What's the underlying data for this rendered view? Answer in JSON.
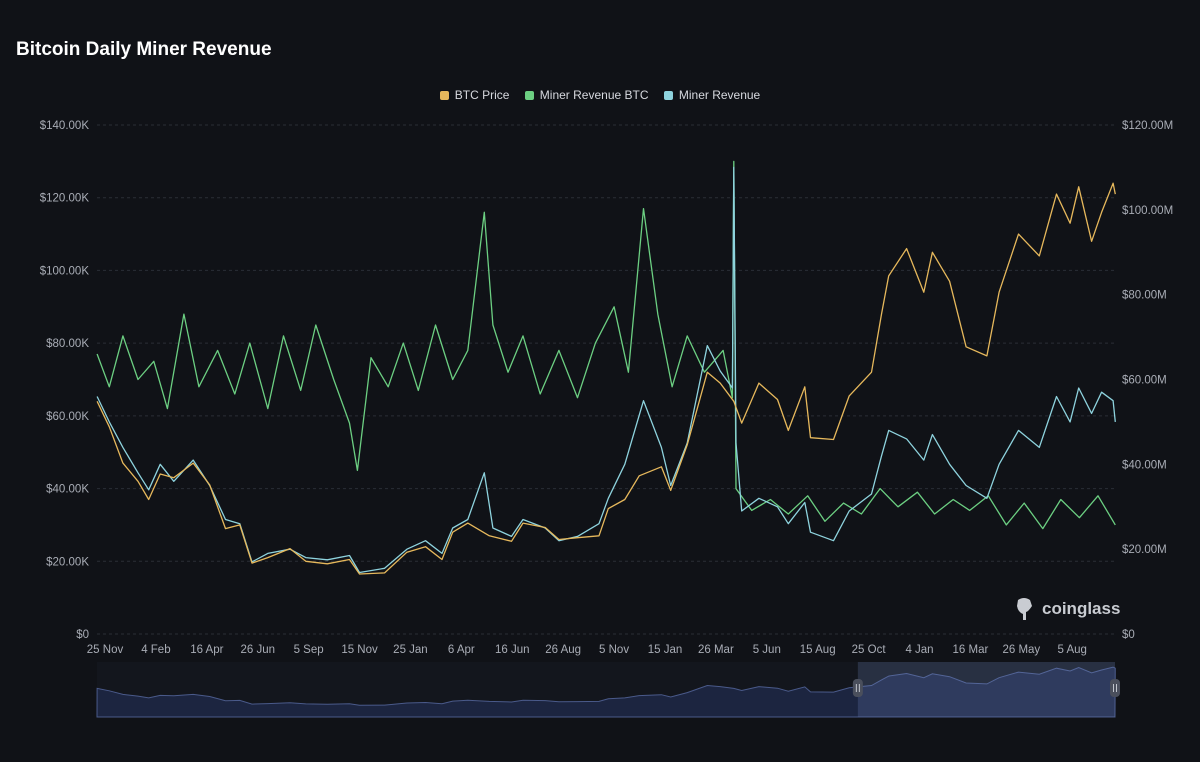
{
  "title": "Bitcoin Daily Miner Revenue",
  "logo": "coinglass",
  "colors": {
    "btc_price": "#e6b85c",
    "miner_revenue_btc": "#6ccf82",
    "miner_revenue": "#8ed3de",
    "background": "#101217",
    "grid": "#2a2e36"
  },
  "chart_data": {
    "type": "line",
    "title": "Bitcoin Daily Miner Revenue",
    "legend_position": "top",
    "grid": true,
    "x_ticks": [
      "25 Nov",
      "4 Feb",
      "16 Apr",
      "26 Jun",
      "5 Sep",
      "15 Nov",
      "25 Jan",
      "6 Apr",
      "16 Jun",
      "26 Aug",
      "5 Nov",
      "15 Jan",
      "26 Mar",
      "5 Jun",
      "15 Aug",
      "25 Oct",
      "4 Jan",
      "16 Mar",
      "26 May",
      "5 Aug"
    ],
    "x_tick_dates": [
      "2021-11-25",
      "2022-02-04",
      "2022-04-16",
      "2022-06-26",
      "2022-09-05",
      "2022-11-15",
      "2023-01-25",
      "2023-04-06",
      "2023-06-16",
      "2023-08-26",
      "2023-11-05",
      "2024-01-15",
      "2024-03-26",
      "2024-06-05",
      "2024-08-15",
      "2024-10-25",
      "2025-01-04",
      "2025-03-16",
      "2025-05-26",
      "2025-08-05"
    ],
    "xlim": [
      "2021-11-14",
      "2025-10-04"
    ],
    "y_left": {
      "ticks": [
        "$0",
        "$20.00K",
        "$40.00K",
        "$60.00K",
        "$80.00K",
        "$100.00K",
        "$120.00K",
        "$140.00K"
      ],
      "range": [
        0,
        140000
      ]
    },
    "y_right": {
      "ticks": [
        "$0",
        "$20.00M",
        "$40.00M",
        "$60.00M",
        "$80.00M",
        "$100.00M",
        "$120.00M"
      ],
      "range": [
        0,
        120000000
      ]
    },
    "series": [
      {
        "name": "BTC Price",
        "axis": "left",
        "points": [
          [
            "2021-11-14",
            64000
          ],
          [
            "2021-12-01",
            57000
          ],
          [
            "2021-12-20",
            47000
          ],
          [
            "2022-01-10",
            42000
          ],
          [
            "2022-01-25",
            37000
          ],
          [
            "2022-02-10",
            44000
          ],
          [
            "2022-03-01",
            43000
          ],
          [
            "2022-03-28",
            47000
          ],
          [
            "2022-04-20",
            41000
          ],
          [
            "2022-05-12",
            29000
          ],
          [
            "2022-06-01",
            30000
          ],
          [
            "2022-06-18",
            19500
          ],
          [
            "2022-07-10",
            21000
          ],
          [
            "2022-08-10",
            23500
          ],
          [
            "2022-09-01",
            20000
          ],
          [
            "2022-10-01",
            19300
          ],
          [
            "2022-11-01",
            20500
          ],
          [
            "2022-11-15",
            16500
          ],
          [
            "2022-12-20",
            16800
          ],
          [
            "2023-01-20",
            22500
          ],
          [
            "2023-02-15",
            24000
          ],
          [
            "2023-03-10",
            20500
          ],
          [
            "2023-03-25",
            28000
          ],
          [
            "2023-04-15",
            30500
          ],
          [
            "2023-05-15",
            27000
          ],
          [
            "2023-06-15",
            25500
          ],
          [
            "2023-07-01",
            30500
          ],
          [
            "2023-08-01",
            29300
          ],
          [
            "2023-08-20",
            26000
          ],
          [
            "2023-09-15",
            26500
          ],
          [
            "2023-10-15",
            27000
          ],
          [
            "2023-10-28",
            34500
          ],
          [
            "2023-11-20",
            37000
          ],
          [
            "2023-12-10",
            43500
          ],
          [
            "2024-01-10",
            46000
          ],
          [
            "2024-01-23",
            39500
          ],
          [
            "2024-02-15",
            52000
          ],
          [
            "2024-03-14",
            72000
          ],
          [
            "2024-04-01",
            69000
          ],
          [
            "2024-04-20",
            64000
          ],
          [
            "2024-05-01",
            58000
          ],
          [
            "2024-05-25",
            69000
          ],
          [
            "2024-06-20",
            64500
          ],
          [
            "2024-07-05",
            56000
          ],
          [
            "2024-07-28",
            68000
          ],
          [
            "2024-08-05",
            54000
          ],
          [
            "2024-09-06",
            53500
          ],
          [
            "2024-09-28",
            65500
          ],
          [
            "2024-10-29",
            72000
          ],
          [
            "2024-11-12",
            88000
          ],
          [
            "2024-11-22",
            98500
          ],
          [
            "2024-12-17",
            106000
          ],
          [
            "2025-01-10",
            94000
          ],
          [
            "2025-01-22",
            105000
          ],
          [
            "2025-02-15",
            97000
          ],
          [
            "2025-03-10",
            79000
          ],
          [
            "2025-04-08",
            76500
          ],
          [
            "2025-04-25",
            94000
          ],
          [
            "2025-05-22",
            110000
          ],
          [
            "2025-06-20",
            104000
          ],
          [
            "2025-07-14",
            121000
          ],
          [
            "2025-08-02",
            113000
          ],
          [
            "2025-08-14",
            123000
          ],
          [
            "2025-09-01",
            108000
          ],
          [
            "2025-09-15",
            116000
          ],
          [
            "2025-10-01",
            124000
          ],
          [
            "2025-10-04",
            121000
          ]
        ]
      },
      {
        "name": "Miner Revenue BTC",
        "axis": "left",
        "points": [
          [
            "2021-11-14",
            77000
          ],
          [
            "2021-12-01",
            68000
          ],
          [
            "2021-12-20",
            82000
          ],
          [
            "2022-01-10",
            70000
          ],
          [
            "2022-02-01",
            75000
          ],
          [
            "2022-02-20",
            62000
          ],
          [
            "2022-03-15",
            88000
          ],
          [
            "2022-04-05",
            68000
          ],
          [
            "2022-05-01",
            78000
          ],
          [
            "2022-05-25",
            66000
          ],
          [
            "2022-06-15",
            80000
          ],
          [
            "2022-07-10",
            62000
          ],
          [
            "2022-08-01",
            82000
          ],
          [
            "2022-08-25",
            67000
          ],
          [
            "2022-09-15",
            85000
          ],
          [
            "2022-10-10",
            70000
          ],
          [
            "2022-11-01",
            58000
          ],
          [
            "2022-11-12",
            45000
          ],
          [
            "2022-12-01",
            76000
          ],
          [
            "2022-12-25",
            68000
          ],
          [
            "2023-01-15",
            80000
          ],
          [
            "2023-02-05",
            67000
          ],
          [
            "2023-03-01",
            85000
          ],
          [
            "2023-03-25",
            70000
          ],
          [
            "2023-04-15",
            78000
          ],
          [
            "2023-05-08",
            116000
          ],
          [
            "2023-05-20",
            85000
          ],
          [
            "2023-06-10",
            72000
          ],
          [
            "2023-07-01",
            82000
          ],
          [
            "2023-07-25",
            66000
          ],
          [
            "2023-08-20",
            78000
          ],
          [
            "2023-09-15",
            65000
          ],
          [
            "2023-10-10",
            80000
          ],
          [
            "2023-11-05",
            90000
          ],
          [
            "2023-11-25",
            72000
          ],
          [
            "2023-12-16",
            117000
          ],
          [
            "2024-01-05",
            88000
          ],
          [
            "2024-01-25",
            68000
          ],
          [
            "2024-02-15",
            82000
          ],
          [
            "2024-03-10",
            72000
          ],
          [
            "2024-04-05",
            78000
          ],
          [
            "2024-04-18",
            65000
          ],
          [
            "2024-04-20",
            130000
          ],
          [
            "2024-04-23",
            40000
          ],
          [
            "2024-05-15",
            34000
          ],
          [
            "2024-06-10",
            37000
          ],
          [
            "2024-07-05",
            33000
          ],
          [
            "2024-08-01",
            38000
          ],
          [
            "2024-08-25",
            31000
          ],
          [
            "2024-09-20",
            36000
          ],
          [
            "2024-10-15",
            33000
          ],
          [
            "2024-11-10",
            40000
          ],
          [
            "2024-12-05",
            35000
          ],
          [
            "2025-01-01",
            39000
          ],
          [
            "2025-01-25",
            33000
          ],
          [
            "2025-02-20",
            37000
          ],
          [
            "2025-03-15",
            34000
          ],
          [
            "2025-04-10",
            38000
          ],
          [
            "2025-05-05",
            30000
          ],
          [
            "2025-05-30",
            36000
          ],
          [
            "2025-06-25",
            29000
          ],
          [
            "2025-07-20",
            37000
          ],
          [
            "2025-08-15",
            32000
          ],
          [
            "2025-09-10",
            38000
          ],
          [
            "2025-10-04",
            30000
          ]
        ]
      },
      {
        "name": "Miner Revenue",
        "axis": "right",
        "points": [
          [
            "2021-11-14",
            56000000
          ],
          [
            "2021-12-01",
            50000000
          ],
          [
            "2021-12-20",
            44000000
          ],
          [
            "2022-01-10",
            38000000
          ],
          [
            "2022-01-25",
            34000000
          ],
          [
            "2022-02-10",
            40000000
          ],
          [
            "2022-03-01",
            36000000
          ],
          [
            "2022-03-28",
            41000000
          ],
          [
            "2022-04-20",
            35000000
          ],
          [
            "2022-05-12",
            27000000
          ],
          [
            "2022-06-01",
            26000000
          ],
          [
            "2022-06-18",
            17000000
          ],
          [
            "2022-07-10",
            19000000
          ],
          [
            "2022-08-10",
            20000000
          ],
          [
            "2022-09-01",
            18000000
          ],
          [
            "2022-10-01",
            17500000
          ],
          [
            "2022-11-01",
            18500000
          ],
          [
            "2022-11-15",
            14500000
          ],
          [
            "2022-12-20",
            15500000
          ],
          [
            "2023-01-20",
            20000000
          ],
          [
            "2023-02-15",
            22000000
          ],
          [
            "2023-03-10",
            19000000
          ],
          [
            "2023-03-25",
            25000000
          ],
          [
            "2023-04-15",
            27000000
          ],
          [
            "2023-05-08",
            38000000
          ],
          [
            "2023-05-20",
            25000000
          ],
          [
            "2023-06-15",
            23000000
          ],
          [
            "2023-07-01",
            27000000
          ],
          [
            "2023-08-01",
            25000000
          ],
          [
            "2023-08-20",
            22000000
          ],
          [
            "2023-09-15",
            23000000
          ],
          [
            "2023-10-15",
            26000000
          ],
          [
            "2023-10-28",
            32000000
          ],
          [
            "2023-11-20",
            40000000
          ],
          [
            "2023-12-16",
            55000000
          ],
          [
            "2024-01-10",
            44000000
          ],
          [
            "2024-01-23",
            35000000
          ],
          [
            "2024-02-15",
            45000000
          ],
          [
            "2024-03-14",
            68000000
          ],
          [
            "2024-04-01",
            62000000
          ],
          [
            "2024-04-18",
            58000000
          ],
          [
            "2024-04-20",
            110000000
          ],
          [
            "2024-04-23",
            45000000
          ],
          [
            "2024-05-01",
            29000000
          ],
          [
            "2024-05-25",
            32000000
          ],
          [
            "2024-06-20",
            30000000
          ],
          [
            "2024-07-05",
            26000000
          ],
          [
            "2024-07-28",
            31000000
          ],
          [
            "2024-08-05",
            24000000
          ],
          [
            "2024-09-06",
            22000000
          ],
          [
            "2024-09-28",
            29000000
          ],
          [
            "2024-10-29",
            33000000
          ],
          [
            "2024-11-12",
            42000000
          ],
          [
            "2024-11-22",
            48000000
          ],
          [
            "2024-12-17",
            46000000
          ],
          [
            "2025-01-10",
            41000000
          ],
          [
            "2025-01-22",
            47000000
          ],
          [
            "2025-02-15",
            40000000
          ],
          [
            "2025-03-10",
            35000000
          ],
          [
            "2025-04-08",
            32000000
          ],
          [
            "2025-04-25",
            40000000
          ],
          [
            "2025-05-22",
            48000000
          ],
          [
            "2025-06-20",
            44000000
          ],
          [
            "2025-07-14",
            56000000
          ],
          [
            "2025-08-02",
            50000000
          ],
          [
            "2025-08-14",
            58000000
          ],
          [
            "2025-09-01",
            52000000
          ],
          [
            "2025-09-15",
            57000000
          ],
          [
            "2025-10-01",
            55000000
          ],
          [
            "2025-10-04",
            50000000
          ]
        ]
      }
    ],
    "zoom_window": {
      "start": "2024-10-10",
      "end": "2025-10-04"
    }
  }
}
